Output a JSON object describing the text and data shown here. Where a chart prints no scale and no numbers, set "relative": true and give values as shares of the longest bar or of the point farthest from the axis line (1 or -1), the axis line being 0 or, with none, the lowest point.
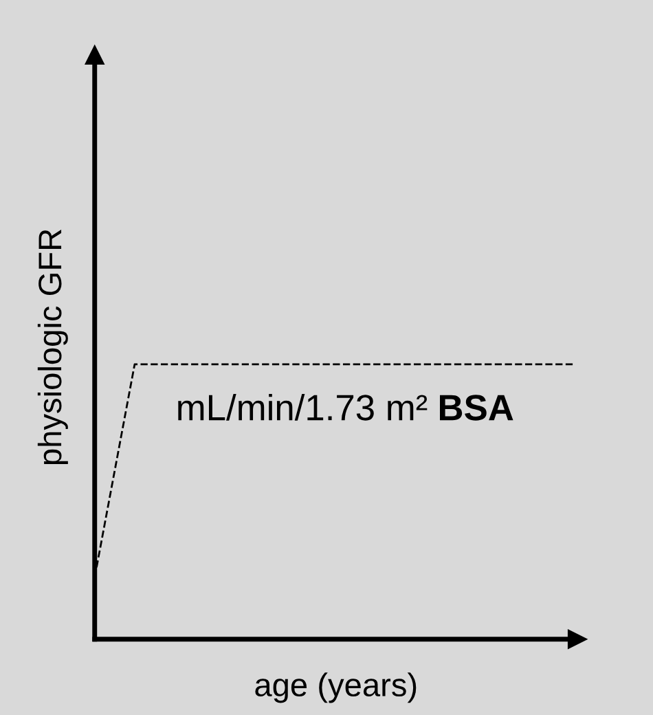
{
  "chart_data": {
    "type": "line",
    "relative": true,
    "xlabel": "age (years)",
    "ylabel": "physiologic GFR",
    "categories": [
      null,
      null,
      null,
      null,
      null,
      null,
      null,
      null,
      null,
      null,
      null,
      null,
      null
    ],
    "series": [
      {
        "color": "#000000",
        "values": [
          0.225,
          1,
          1,
          1,
          1,
          1,
          1,
          1,
          1,
          1,
          1,
          1,
          1
        ],
        "line_style": "dashed"
      }
    ],
    "annotations": [
      "mL/min/1.73 m²",
      "BSA"
    ]
  }
}
